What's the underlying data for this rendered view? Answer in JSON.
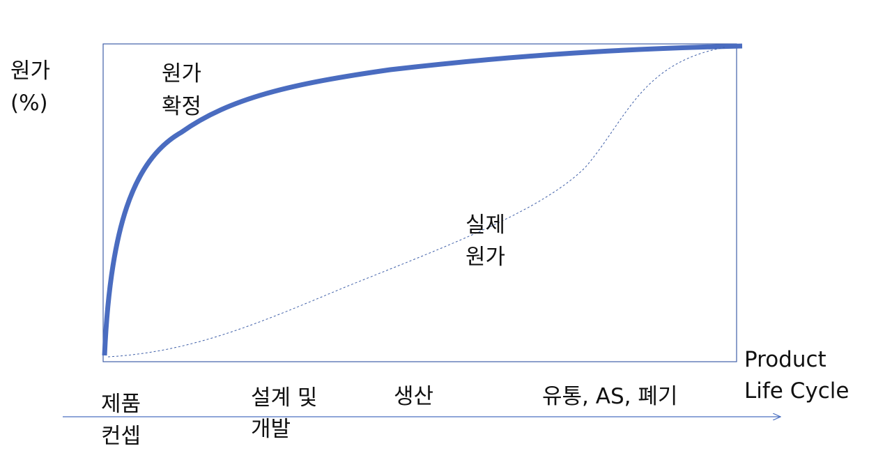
{
  "y_axis_label": [
    "원가",
    "(%)"
  ],
  "x_axis_label": [
    "Product",
    "Life Cycle"
  ],
  "curves": [
    {
      "label": [
        "원가",
        "확정"
      ]
    },
    {
      "label": [
        "실제",
        "원가"
      ]
    }
  ],
  "stages": [
    [
      "제품",
      "컨셉"
    ],
    [
      "설계 및",
      "개발"
    ],
    [
      "생산"
    ],
    [
      "유통, AS, 폐기"
    ]
  ]
}
